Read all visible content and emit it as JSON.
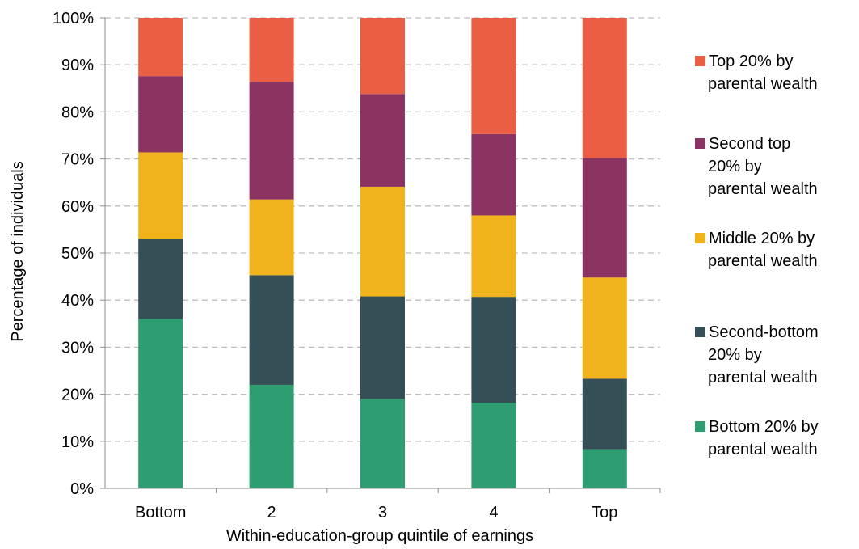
{
  "chart_data": {
    "type": "bar",
    "stacked": true,
    "xlabel": "Within-education-group quintile of earnings",
    "ylabel": "Percentage of individuals",
    "ylim": [
      0,
      100
    ],
    "y_ticks": [
      "0%",
      "10%",
      "20%",
      "30%",
      "40%",
      "50%",
      "60%",
      "70%",
      "80%",
      "90%",
      "100%"
    ],
    "grid": "horizontal dashed",
    "legend_position": "right",
    "categories": [
      "Bottom",
      "2",
      "3",
      "4",
      "Top"
    ],
    "series": [
      {
        "name": "Bottom 20% by parental wealth",
        "legend_lines": [
          "Bottom 20% by",
          "parental wealth"
        ],
        "color": "#2e9e72",
        "values": [
          36,
          22,
          19,
          18.2,
          8.3
        ]
      },
      {
        "name": "Second-bottom 20% by parental wealth",
        "legend_lines": [
          "Second-bottom",
          "20% by",
          "parental wealth"
        ],
        "color": "#344f55",
        "values": [
          17,
          23.3,
          21.8,
          22.5,
          15
        ]
      },
      {
        "name": "Middle 20% by parental wealth",
        "legend_lines": [
          "Middle 20% by",
          "parental wealth"
        ],
        "color": "#f0b31b",
        "values": [
          18.4,
          16.1,
          23.3,
          17.3,
          21.5
        ]
      },
      {
        "name": "Second top 20% by parental wealth",
        "legend_lines": [
          "Second top",
          "20% by",
          "parental wealth"
        ],
        "color": "#8c3461",
        "values": [
          16.2,
          25,
          19.7,
          17.3,
          25.4
        ]
      },
      {
        "name": "Top 20% by parental wealth",
        "legend_lines": [
          "Top 20% by",
          "parental wealth"
        ],
        "color": "#ea5e43",
        "values": [
          12.4,
          13.6,
          16.2,
          24.7,
          29.8
        ]
      }
    ],
    "legend_order": [
      4,
      3,
      2,
      1,
      0
    ]
  }
}
